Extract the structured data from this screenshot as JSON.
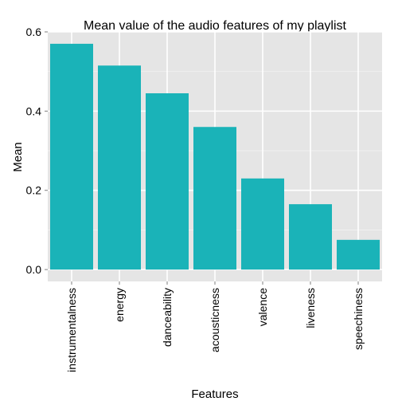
{
  "chart_data": {
    "type": "bar",
    "title": "Mean value of the audio features of my playlist",
    "xlabel": "Features",
    "ylabel": "Mean",
    "categories": [
      "instrumentalness",
      "energy",
      "danceability",
      "acousticness",
      "valence",
      "liveness",
      "speechiness"
    ],
    "values": [
      0.57,
      0.515,
      0.445,
      0.36,
      0.23,
      0.165,
      0.075
    ],
    "ylim": [
      -0.03,
      0.6
    ],
    "yticks": [
      0.0,
      0.2,
      0.4,
      0.6
    ],
    "ytick_labels": [
      "0.0",
      "0.2",
      "0.4",
      "0.6"
    ],
    "grid": true,
    "bar_color": "#1AB3B8",
    "panel_background": "#E5E5E5",
    "grid_major_color": "#FFFFFF",
    "grid_minor_color": "#F2F2F2"
  }
}
